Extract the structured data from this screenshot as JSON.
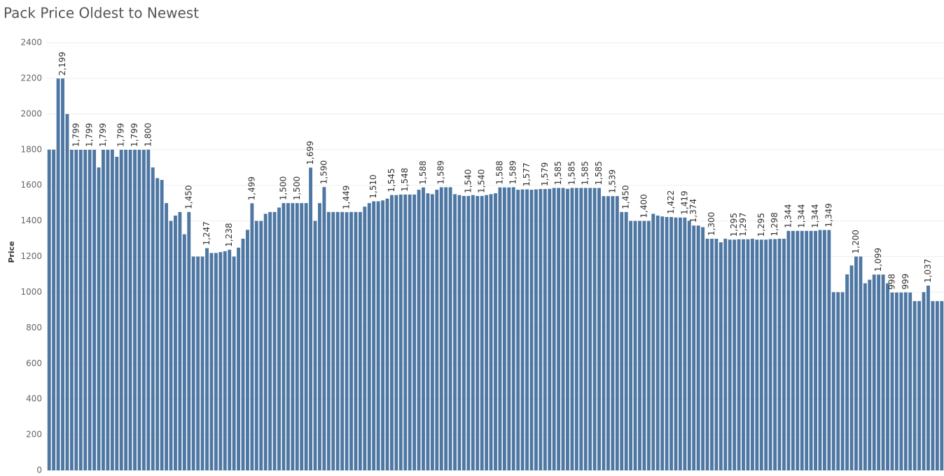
{
  "chart_data": {
    "type": "bar",
    "title": "Pack Price Oldest to Newest",
    "y_label": "Price",
    "color": "#4e77a3",
    "grid": true,
    "ylim": [
      0,
      2400
    ],
    "yticks": [
      0,
      200,
      400,
      600,
      800,
      1000,
      1200,
      1400,
      1600,
      1800,
      2000,
      2200,
      2400
    ],
    "values": [
      1800,
      1800,
      2199,
      2199,
      2000,
      1799,
      1799,
      1799,
      1799,
      1799,
      1799,
      1700,
      1799,
      1799,
      1800,
      1760,
      1799,
      1799,
      1799,
      1799,
      1799,
      1799,
      1800,
      1700,
      1640,
      1630,
      1500,
      1400,
      1430,
      1450,
      1325,
      1450,
      1200,
      1200,
      1200,
      1247,
      1220,
      1220,
      1225,
      1230,
      1238,
      1200,
      1250,
      1300,
      1350,
      1499,
      1400,
      1400,
      1440,
      1450,
      1450,
      1475,
      1500,
      1500,
      1500,
      1500,
      1500,
      1500,
      1699,
      1400,
      1500,
      1590,
      1450,
      1450,
      1450,
      1450,
      1449,
      1450,
      1450,
      1450,
      1480,
      1500,
      1510,
      1510,
      1515,
      1525,
      1545,
      1545,
      1548,
      1548,
      1548,
      1548,
      1575,
      1588,
      1555,
      1550,
      1575,
      1589,
      1589,
      1589,
      1550,
      1545,
      1540,
      1540,
      1545,
      1540,
      1540,
      1545,
      1550,
      1555,
      1588,
      1588,
      1588,
      1589,
      1575,
      1577,
      1577,
      1575,
      1577,
      1579,
      1579,
      1580,
      1585,
      1585,
      1585,
      1580,
      1585,
      1585,
      1585,
      1585,
      1585,
      1585,
      1585,
      1539,
      1539,
      1539,
      1539,
      1450,
      1450,
      1400,
      1400,
      1400,
      1400,
      1400,
      1440,
      1430,
      1425,
      1422,
      1422,
      1419,
      1419,
      1419,
      1400,
      1374,
      1374,
      1365,
      1300,
      1300,
      1300,
      1280,
      1300,
      1295,
      1295,
      1297,
      1297,
      1297,
      1300,
      1295,
      1295,
      1295,
      1298,
      1298,
      1300,
      1300,
      1344,
      1344,
      1344,
      1344,
      1344,
      1344,
      1344,
      1349,
      1349,
      1349,
      1000,
      1000,
      1000,
      1100,
      1150,
      1200,
      1200,
      1050,
      1070,
      1099,
      1099,
      1099,
      1050,
      998,
      998,
      998,
      999,
      998,
      950,
      950,
      1000,
      1037,
      950,
      950,
      950
    ],
    "value_labels": [
      null,
      null,
      null,
      "2,199",
      null,
      null,
      "1,799",
      null,
      null,
      "1,799",
      null,
      null,
      "1,799",
      null,
      null,
      null,
      "1,799",
      null,
      null,
      "1,799",
      null,
      null,
      "1,800",
      null,
      null,
      null,
      null,
      null,
      null,
      null,
      null,
      "1,450",
      null,
      null,
      null,
      "1,247",
      null,
      null,
      null,
      null,
      "1,238",
      null,
      null,
      null,
      null,
      "1,499",
      null,
      null,
      null,
      null,
      null,
      null,
      "1,500",
      null,
      null,
      "1,500",
      null,
      null,
      "1,699",
      null,
      null,
      "1,590",
      null,
      null,
      null,
      null,
      "1,449",
      null,
      null,
      null,
      null,
      null,
      "1,510",
      null,
      null,
      null,
      "1,545",
      null,
      null,
      "1,548",
      null,
      null,
      null,
      "1,588",
      null,
      null,
      null,
      "1,589",
      null,
      null,
      null,
      null,
      null,
      "1,540",
      null,
      null,
      "1,540",
      null,
      null,
      null,
      "1,588",
      null,
      null,
      "1,589",
      null,
      null,
      "1,577",
      null,
      null,
      null,
      "1,579",
      null,
      null,
      "1,585",
      null,
      null,
      "1,585",
      null,
      null,
      "1,585",
      null,
      null,
      "1,585",
      null,
      null,
      "1,539",
      null,
      null,
      "1,450",
      null,
      null,
      null,
      "1,400",
      null,
      null,
      null,
      null,
      null,
      "1,422",
      null,
      null,
      "1,419",
      null,
      "1,374",
      null,
      null,
      null,
      "1,300",
      null,
      null,
      null,
      null,
      "1,295",
      null,
      "1,297",
      null,
      null,
      null,
      "1,295",
      null,
      null,
      "1,298",
      null,
      null,
      "1,344",
      null,
      null,
      "1,344",
      null,
      null,
      "1,344",
      null,
      null,
      "1,349",
      null,
      null,
      null,
      null,
      null,
      "1,200",
      null,
      null,
      null,
      null,
      "1,099",
      null,
      null,
      "998",
      null,
      null,
      "999",
      null,
      null,
      null,
      null,
      "1,037",
      null,
      null,
      null
    ]
  }
}
